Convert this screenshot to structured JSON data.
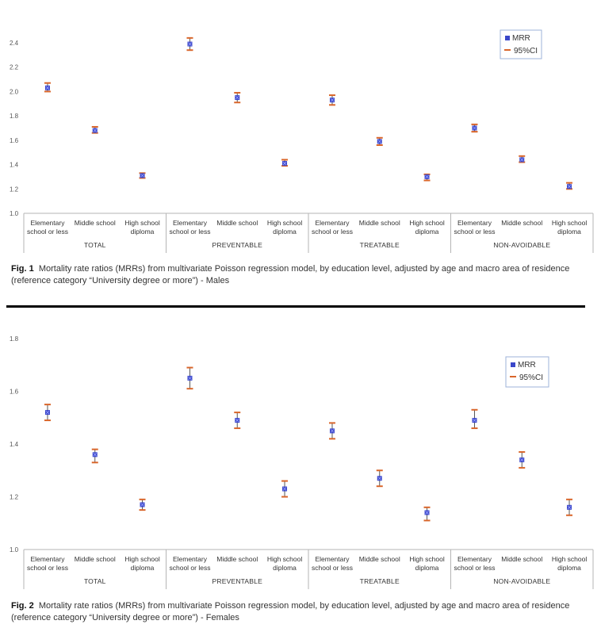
{
  "colors": {
    "mrr": "#3b47c9",
    "ci": "#d9662b",
    "axis": "#b5b5b5",
    "divider": "#000000"
  },
  "legend": {
    "mrr": "MRR",
    "ci": "95%CI"
  },
  "captions": [
    {
      "label": "Fig. 1",
      "text": "Mortality rate ratios (MRRs) from multivariate Poisson regression model, by education level, adjusted by age and macro area of residence (reference category “University degree or more”) - Males"
    },
    {
      "label": "Fig. 2",
      "text": "Mortality rate ratios (MRRs) from multivariate Poisson regression model, by education level, adjusted by age and macro area of residence (reference category “University degree or more”) - Females"
    }
  ],
  "chart_data": [
    {
      "type": "scatter",
      "title": "",
      "groups": [
        "TOTAL",
        "PREVENTABLE",
        "TREATABLE",
        "NON-AVOIDABLE"
      ],
      "categories": [
        [
          "Elementary",
          "school or less"
        ],
        [
          "Middle school"
        ],
        [
          "High school",
          "diploma"
        ]
      ],
      "ylim": [
        1.0,
        2.4
      ],
      "yticks": [
        "1.0",
        "1.2",
        "1.4",
        "1.6",
        "1.8",
        "2.0",
        "2.2",
        "2.4"
      ],
      "legend_position": "top-right",
      "grid": false,
      "series": [
        {
          "name": "MRR",
          "values": [
            2.03,
            1.68,
            1.31,
            2.39,
            1.95,
            1.41,
            1.93,
            1.59,
            1.3,
            1.7,
            1.44,
            1.22
          ]
        },
        {
          "name": "95%CI",
          "lower": [
            2.0,
            1.66,
            1.29,
            2.34,
            1.91,
            1.39,
            1.89,
            1.56,
            1.27,
            1.67,
            1.42,
            1.2
          ],
          "upper": [
            2.07,
            1.71,
            1.33,
            2.44,
            1.99,
            1.44,
            1.97,
            1.62,
            1.32,
            1.73,
            1.47,
            1.25
          ]
        }
      ]
    },
    {
      "type": "scatter",
      "title": "",
      "groups": [
        "TOTAL",
        "PREVENTABLE",
        "TREATABLE",
        "NON-AVOIDABLE"
      ],
      "categories": [
        [
          "Elementary",
          "school or less"
        ],
        [
          "Middle school"
        ],
        [
          "High school",
          "diploma"
        ]
      ],
      "ylim": [
        1.0,
        1.8
      ],
      "yticks": [
        "1.0",
        "1.2",
        "1.4",
        "1.6",
        "1.8"
      ],
      "legend_position": "top-right",
      "grid": false,
      "series": [
        {
          "name": "MRR",
          "values": [
            1.52,
            1.36,
            1.17,
            1.65,
            1.49,
            1.23,
            1.45,
            1.27,
            1.14,
            1.49,
            1.34,
            1.16
          ]
        },
        {
          "name": "95%CI",
          "lower": [
            1.49,
            1.33,
            1.15,
            1.61,
            1.46,
            1.2,
            1.42,
            1.24,
            1.11,
            1.46,
            1.31,
            1.13
          ],
          "upper": [
            1.55,
            1.38,
            1.19,
            1.69,
            1.52,
            1.26,
            1.48,
            1.3,
            1.16,
            1.53,
            1.37,
            1.19
          ]
        }
      ]
    }
  ]
}
